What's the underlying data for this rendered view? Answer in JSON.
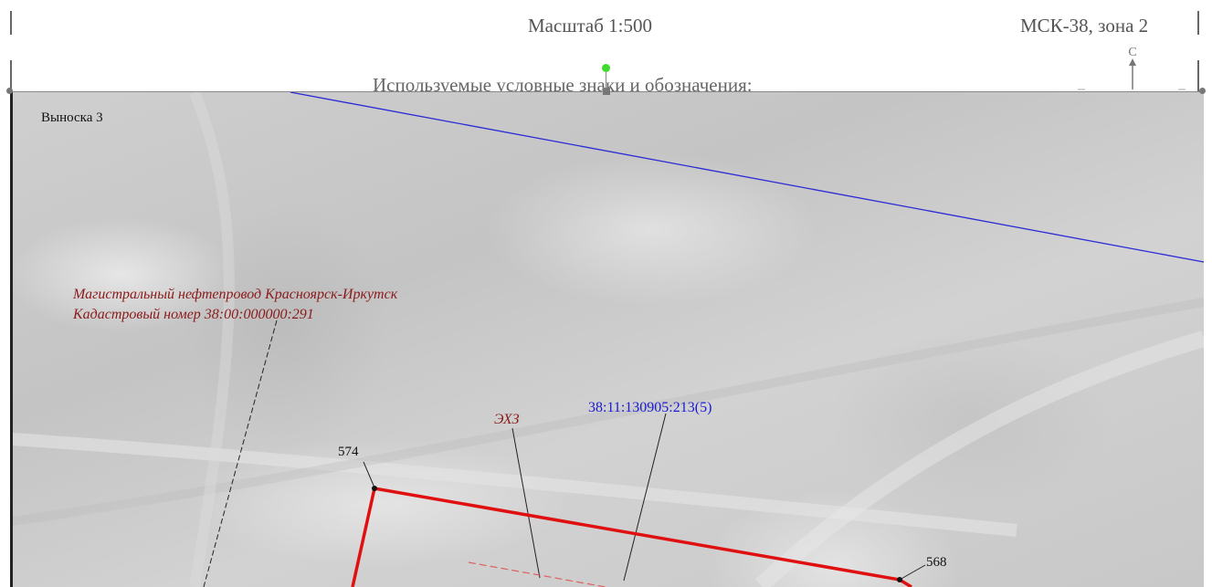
{
  "header": {
    "scale": "Масштаб 1:500",
    "crs": "МСК-38, зона 2",
    "north_letter": "С",
    "legend_title": "Используемые условные знаки и обозначения:"
  },
  "map": {
    "callout_title": "Выноска 3",
    "pipeline_name": "Магистральный нефтепровод Красноярск-Иркутск",
    "pipeline_cadastral": "Кадастровый номер 38:00:000000:291",
    "zone_label": "ЭХЗ",
    "parcel_label": "38:11:130905:213(5)",
    "point_574": "574",
    "point_568": "568",
    "colors": {
      "parcel_boundary": "#e01010",
      "cadastral_boundary": "#2a2ad6",
      "annotation_red": "#8b1a1a",
      "annotation_blue": "#1a1ad8",
      "selection_handle": "#3ddc2c"
    }
  }
}
